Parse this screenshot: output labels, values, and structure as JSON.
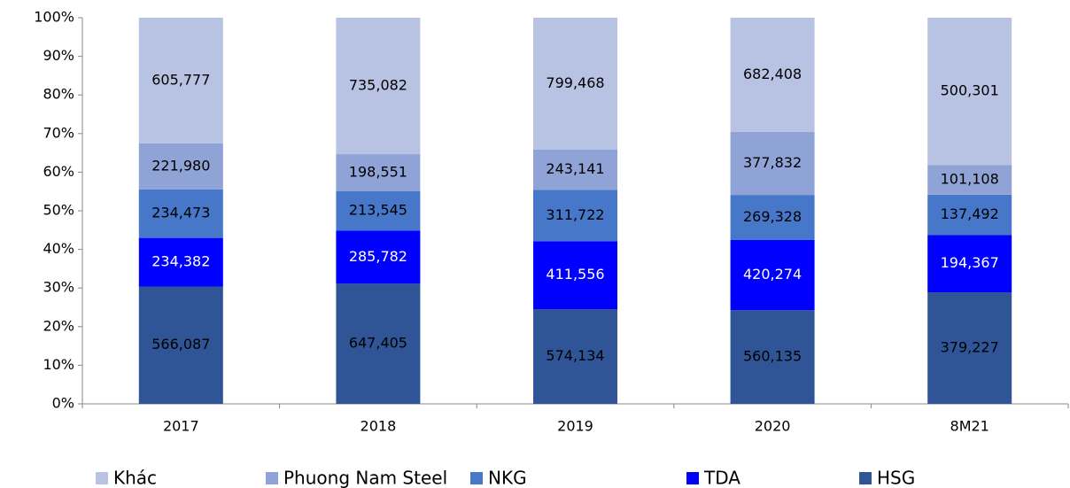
{
  "chart_data": {
    "type": "stacked_percent_bar",
    "categories": [
      "2017",
      "2018",
      "2019",
      "2020",
      "8M21"
    ],
    "series": [
      {
        "name": "HSG",
        "color": "#2f5597",
        "values": [
          566087,
          647405,
          574134,
          560135,
          379227
        ],
        "value_labels": [
          "566,087",
          "647,405",
          "574,134",
          "560,135",
          "379,227"
        ]
      },
      {
        "name": "TDA",
        "color": "#0000ff",
        "values": [
          234382,
          285782,
          411556,
          420274,
          194367
        ],
        "value_labels": [
          "234,382",
          "285,782",
          "411,556",
          "420,274",
          "194,367"
        ]
      },
      {
        "name": "NKG",
        "color": "#4677c8",
        "values": [
          234473,
          213545,
          311722,
          269328,
          137492
        ],
        "value_labels": [
          "234,473",
          "213,545",
          "311,722",
          "269,328",
          "137,492"
        ]
      },
      {
        "name": "Phuong Nam Steel",
        "color": "#8fa3d6",
        "values": [
          221980,
          198551,
          243141,
          377832,
          101108
        ],
        "value_labels": [
          "221,980",
          "198,551",
          "243,141",
          "377,832",
          "101,108"
        ]
      },
      {
        "name": "Khác",
        "color": "#b8c2e2",
        "values": [
          605777,
          735082,
          799468,
          682408,
          500301
        ],
        "value_labels": [
          "605,777",
          "735,082",
          "799,468",
          "682,408",
          "500,301"
        ]
      }
    ],
    "ylim": [
      0,
      100
    ],
    "yticks": [
      {
        "value": 0,
        "label": "0%"
      },
      {
        "value": 10,
        "label": "10%"
      },
      {
        "value": 20,
        "label": "20%"
      },
      {
        "value": 30,
        "label": "30%"
      },
      {
        "value": 40,
        "label": "40%"
      },
      {
        "value": 50,
        "label": "50%"
      },
      {
        "value": 60,
        "label": "60%"
      },
      {
        "value": 70,
        "label": "70%"
      },
      {
        "value": 80,
        "label": "80%"
      },
      {
        "value": 90,
        "label": "90%"
      },
      {
        "value": 100,
        "label": "100%"
      }
    ],
    "legend": "bottom"
  }
}
